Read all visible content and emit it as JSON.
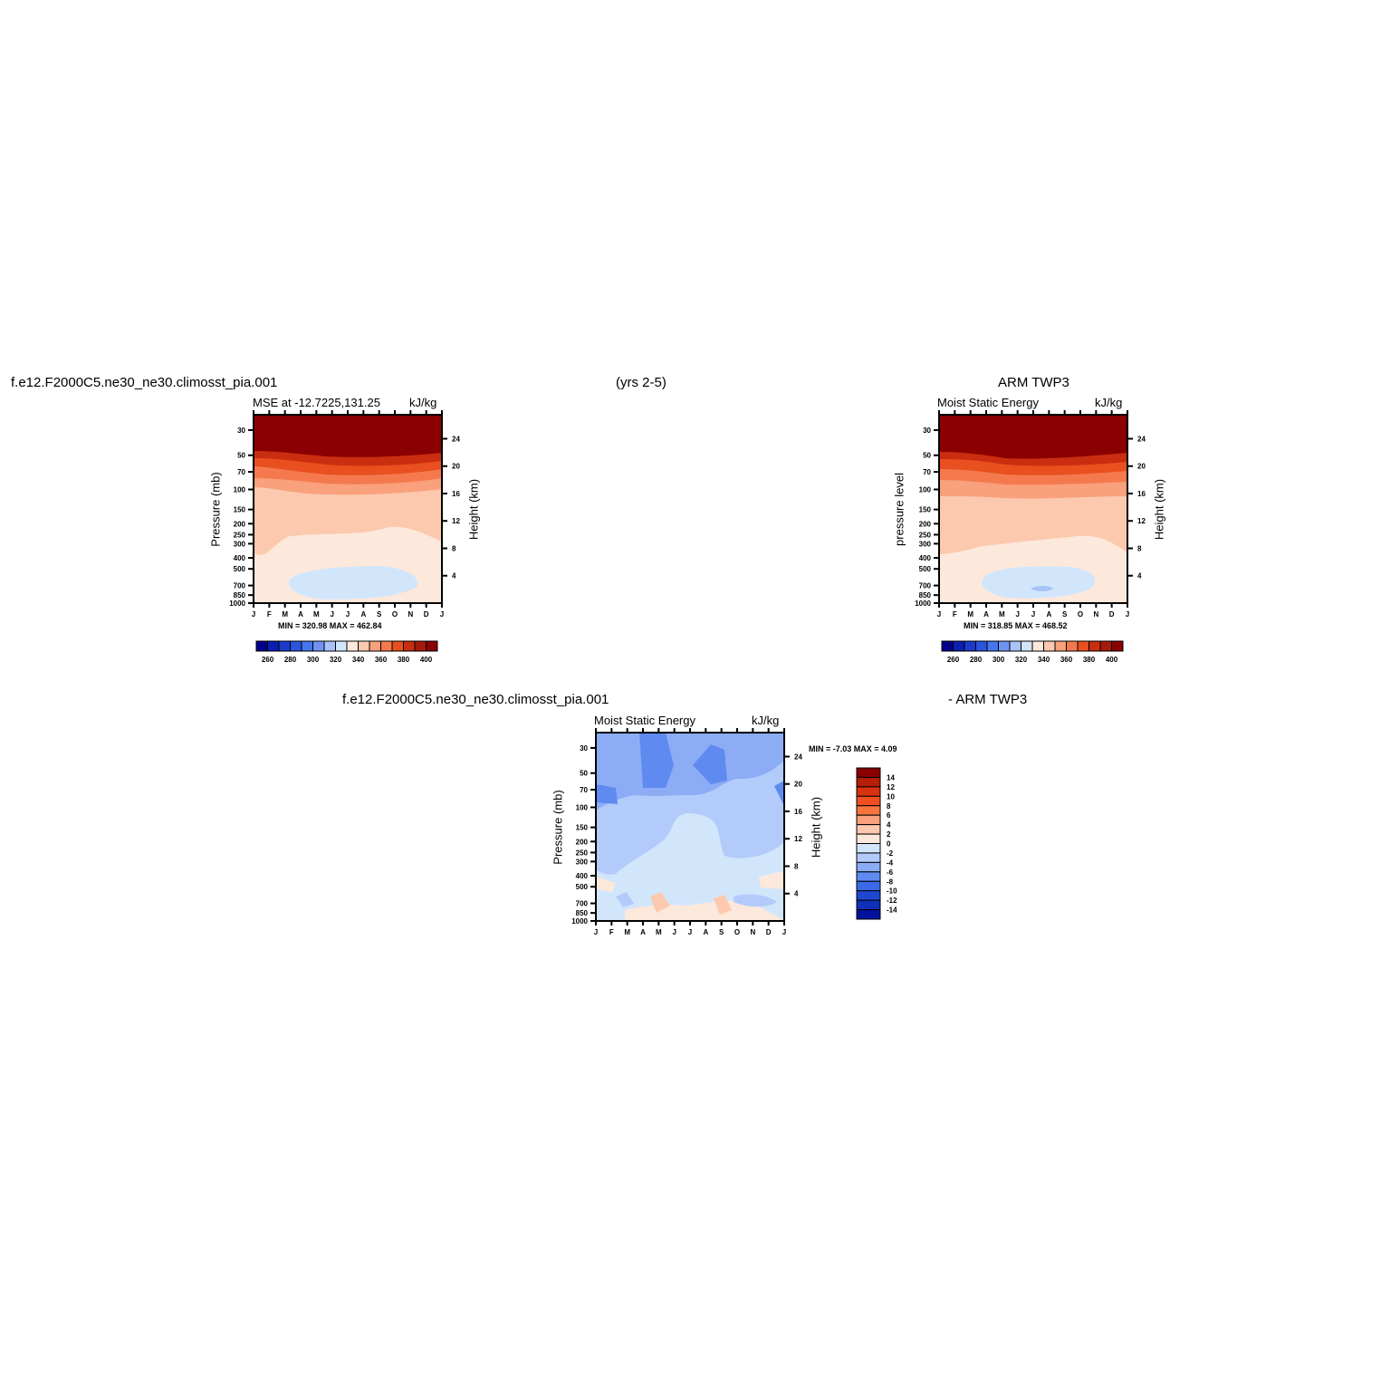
{
  "header": {
    "left_case": "f.e12.F2000C5.ne30_ne30.climosst_pia.001",
    "years": "(yrs 2-5)",
    "right_case": "ARM TWP3",
    "diff_case": "f.e12.F2000C5.ne30_ne30.climosst_pia.001",
    "diff_minus": "- ARM TWP3"
  },
  "chart_data": [
    {
      "type": "heatmap",
      "title_left": "MSE at -12.7225,131.25",
      "title_right": "kJ/kg",
      "ylabel": "Pressure (mb)",
      "ylabel_right": "Height (km)",
      "x_ticklabels": [
        "J",
        "F",
        "M",
        "A",
        "M",
        "J",
        "J",
        "A",
        "S",
        "O",
        "N",
        "D",
        "J"
      ],
      "y_ticks": [
        30,
        50,
        70,
        100,
        150,
        200,
        250,
        300,
        400,
        500,
        700,
        850,
        1000
      ],
      "y_ticks_right": [
        24,
        20,
        16,
        12,
        8,
        4
      ],
      "minmax": "MIN = 320.98 MAX = 462.84",
      "colorbar_labels": [
        "260",
        "280",
        "300",
        "320",
        "340",
        "360",
        "380",
        "400"
      ],
      "bands": [
        {
          "p": 1000,
          "value": 345
        },
        {
          "p": 850,
          "value": 335
        },
        {
          "p": 600,
          "value": 325
        },
        {
          "p": 450,
          "value": 335
        },
        {
          "p": 250,
          "value": 345
        },
        {
          "p": 100,
          "value": 355
        },
        {
          "p": 80,
          "value": 365
        },
        {
          "p": 65,
          "value": 375
        },
        {
          "p": 55,
          "value": 385
        },
        {
          "p": 40,
          "value": 400
        }
      ]
    },
    {
      "type": "heatmap",
      "title_left": "Moist Static Energy",
      "title_right": "kJ/kg",
      "ylabel": "pressure level",
      "ylabel_right": "Height (km)",
      "x_ticklabels": [
        "J",
        "F",
        "M",
        "A",
        "M",
        "J",
        "J",
        "A",
        "S",
        "O",
        "N",
        "D",
        "J"
      ],
      "y_ticks": [
        30,
        50,
        70,
        100,
        150,
        200,
        250,
        300,
        400,
        500,
        700,
        850,
        1000
      ],
      "y_ticks_right": [
        24,
        20,
        16,
        12,
        8,
        4
      ],
      "minmax": "MIN = 318.85 MAX = 468.52",
      "colorbar_labels": [
        "260",
        "280",
        "300",
        "320",
        "340",
        "360",
        "380",
        "400"
      ]
    },
    {
      "type": "heatmap",
      "title_left": "Moist Static Energy",
      "title_right": "kJ/kg",
      "ylabel": "Pressure (mb)",
      "ylabel_right": "Height (km)",
      "x_ticklabels": [
        "J",
        "F",
        "M",
        "A",
        "M",
        "J",
        "J",
        "A",
        "S",
        "O",
        "N",
        "D",
        "J"
      ],
      "y_ticks": [
        30,
        50,
        70,
        100,
        150,
        200,
        250,
        300,
        400,
        500,
        700,
        850,
        1000
      ],
      "y_ticks_right": [
        24,
        20,
        16,
        12,
        8,
        4
      ],
      "minmax": "MIN = -7.03 MAX = 4.09",
      "colorbar_labels": [
        "14",
        "12",
        "10",
        "8",
        "6",
        "4",
        "2",
        "0",
        "-2",
        "-4",
        "-6",
        "-8",
        "-10",
        "-12",
        "-14"
      ]
    }
  ],
  "colors": {
    "mse_scale": [
      "#00008b",
      "#0a1fb0",
      "#1a3ccc",
      "#2a55dd",
      "#4477ee",
      "#6f93f2",
      "#a9c3f7",
      "#d2e6fb",
      "#fde8dc",
      "#fcc9ae",
      "#f9a07c",
      "#f47a4e",
      "#e8501f",
      "#c92e10",
      "#a41a0a",
      "#8b0000"
    ],
    "diff_scale": [
      "#8b0000",
      "#b51e08",
      "#d83210",
      "#f05020",
      "#f8743e",
      "#f9a07c",
      "#fcc9ae",
      "#fde8dc",
      "#d2e6fb",
      "#b3cbfa",
      "#8cacf6",
      "#5f8af0",
      "#3b6ae8",
      "#1f48d2",
      "#1030b8",
      "#00129c"
    ]
  }
}
